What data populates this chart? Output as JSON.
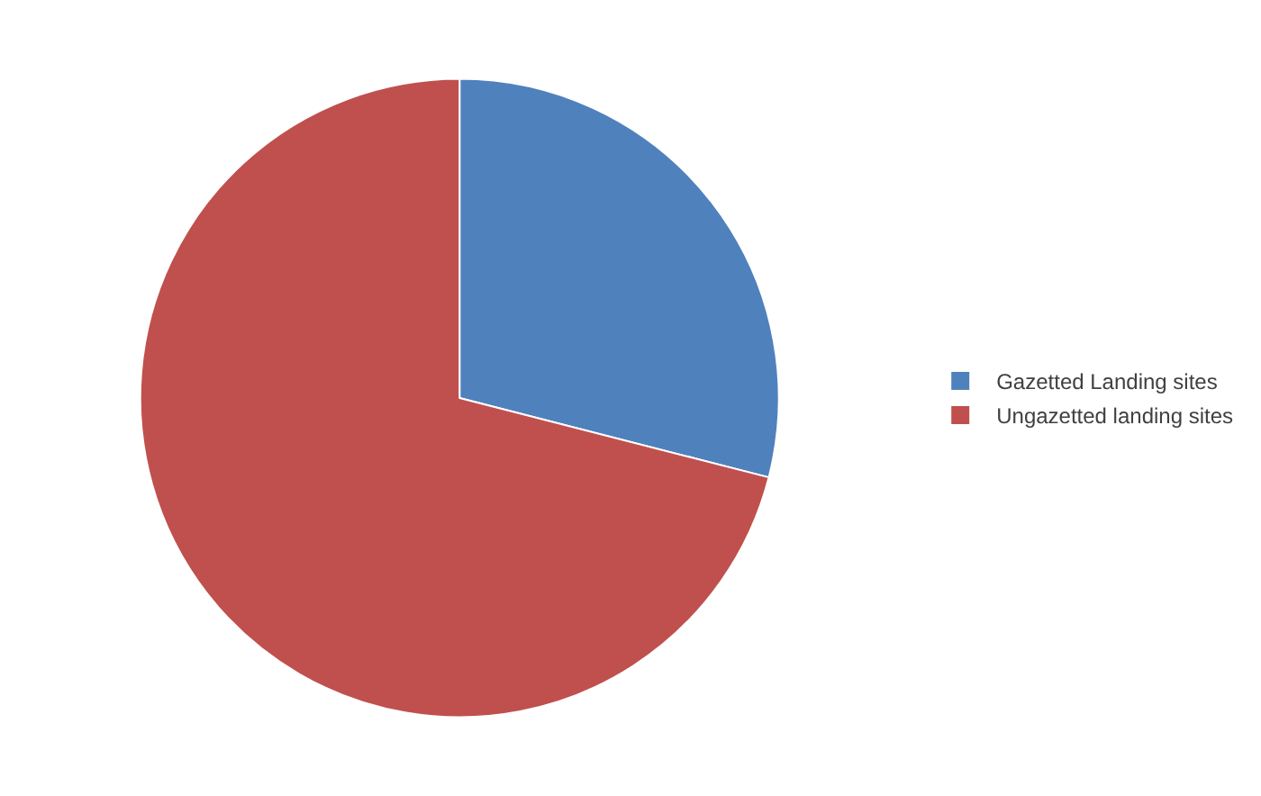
{
  "chart_data": {
    "type": "pie",
    "categories": [
      "Gazetted Landing sites",
      "Ungazetted landing sites"
    ],
    "values": [
      29,
      71
    ],
    "colors": [
      "#4f81bd",
      "#c0504d"
    ],
    "legend": "right"
  }
}
